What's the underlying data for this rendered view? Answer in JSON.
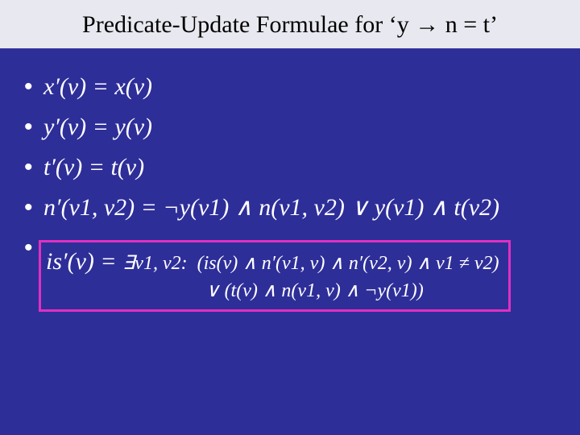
{
  "colors": {
    "background": "#2e2e99",
    "title_bg": "#e8e8f0",
    "title_text": "#000000",
    "body_text": "#ffffff",
    "box_border": "#e030c0"
  },
  "typography": {
    "title_fontsize": 30,
    "bullet_fontsize": 30,
    "sub_fontsize": 24,
    "font_family": "Times New Roman"
  },
  "title": "Predicate-Update Formulae for ‘y → n = t’",
  "bullets": {
    "b1": "x′(v) = x(v)",
    "b2": "y′(v) = y(v)",
    "b3": "t′(v) = t(v)",
    "b4": "n′(v1, v2) = ¬y(v1) ∧ n(v1, v2) ∨ y(v1) ∧ t(v2)"
  },
  "boxed": {
    "lead": "is′(v) = ",
    "line1": "∃v1, v2:  (is(v) ∧ n′(v1, v) ∧ n′(v2, v) ∧ v1 ≠ v2)",
    "line2": "∨ (t(v) ∧ n(v1, v) ∧ ¬y(v1))"
  },
  "bullet_char": "•"
}
